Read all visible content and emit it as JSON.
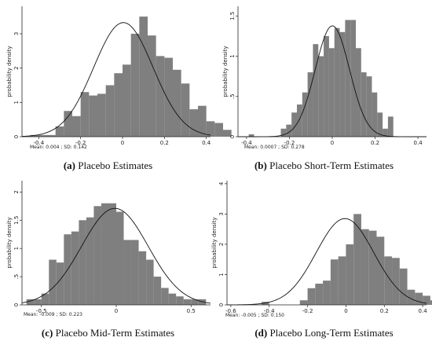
{
  "chart_data": [
    {
      "type": "histogram",
      "caption": {
        "label": "(a)",
        "text": "Placebo Estimates"
      },
      "ylabel": "probability density",
      "stats_text": "Mean: 0.004 ; SD: 0.142",
      "xlim": [
        -0.48,
        0.42
      ],
      "ylim": [
        0,
        3.8
      ],
      "xticks": [
        -0.4,
        -0.2,
        0,
        0.2,
        0.4
      ],
      "xtick_labels": [
        "-0.4",
        "-0.2",
        "0",
        "0.2",
        "0.4"
      ],
      "yticks": [
        0,
        1,
        2,
        3
      ],
      "ytick_labels": [
        "0",
        "1",
        "2",
        "3"
      ],
      "bin_start": -0.44,
      "bin_width": 0.04,
      "densities": [
        0.05,
        0.05,
        0.05,
        0.3,
        0.75,
        0.6,
        1.3,
        1.2,
        1.25,
        1.5,
        1.85,
        2.1,
        3.0,
        3.5,
        2.95,
        2.35,
        2.3,
        1.95,
        1.55,
        0.8,
        0.9,
        0.45,
        0.4,
        0.2
      ],
      "normal": {
        "mean": 0.004,
        "sd": 0.142
      },
      "grid": false
    },
    {
      "type": "histogram",
      "caption": {
        "label": "(b)",
        "text": "Placebo Short-Term Estimates"
      },
      "ylabel": "probability density",
      "stats_text": "Mean: 0.0007 ; SD: 0.278",
      "xlim": [
        -0.44,
        0.44
      ],
      "ylim": [
        0,
        1.62
      ],
      "xticks": [
        -0.4,
        -0.2,
        0,
        0.2,
        0.4
      ],
      "xtick_labels": [
        "-0.4",
        "-0.2",
        "0",
        "0.2",
        "0.4"
      ],
      "yticks": [
        0,
        0.5,
        1,
        1.5
      ],
      "ytick_labels": [
        "0",
        ".5",
        "1",
        "1.5"
      ],
      "bin_start": -0.39,
      "bin_width": 0.025,
      "densities": [
        0.03,
        0,
        0,
        0,
        0,
        0,
        0.1,
        0.15,
        0.3,
        0.4,
        0.55,
        0.8,
        1.15,
        1.0,
        1.25,
        1.1,
        1.35,
        1.3,
        1.45,
        1.45,
        1.1,
        0.8,
        0.75,
        0.55,
        0.3,
        0.1,
        0.25
      ],
      "normal": {
        "mean": 0.0007,
        "sd": 0.278
      },
      "curve_sd": 0.08,
      "grid": false
    },
    {
      "type": "histogram",
      "caption": {
        "label": "(c)",
        "text": "Placebo Mid-Term Estimates"
      },
      "ylabel": "probability density",
      "stats_text": "Mean: -0.009 ; SD: 0.223",
      "xlim": [
        -0.63,
        0.63
      ],
      "ylim": [
        0,
        2.2
      ],
      "xticks": [
        -0.5,
        0,
        0.5
      ],
      "xtick_labels": [
        "-0.5",
        "0",
        "0.5"
      ],
      "yticks": [
        0,
        0.5,
        1,
        1.5,
        2
      ],
      "ytick_labels": [
        "0",
        ".5",
        "1",
        "1.5",
        "2"
      ],
      "bin_start": -0.6,
      "bin_width": 0.05,
      "densities": [
        0.1,
        0.1,
        0.2,
        0.8,
        0.75,
        1.25,
        1.3,
        1.5,
        1.55,
        1.75,
        1.8,
        1.8,
        1.65,
        1.15,
        1.15,
        0.95,
        0.8,
        0.5,
        0.3,
        0.2,
        0.15,
        0.1,
        0.1,
        0.1
      ],
      "normal": {
        "mean": -0.009,
        "sd": 0.223
      },
      "grid": false
    },
    {
      "type": "histogram",
      "caption": {
        "label": "(d)",
        "text": "Placebo Long-Term Estimates"
      },
      "ylabel": "probability density",
      "stats_text": "Mean: -0.005 ; SD: 0.150",
      "xlim": [
        -0.62,
        0.42
      ],
      "ylim": [
        0,
        4.1
      ],
      "xticks": [
        -0.6,
        -0.4,
        -0.2,
        0,
        0.2,
        0.4
      ],
      "xtick_labels": [
        "-0.6",
        "-0.4",
        "-0.2",
        "0",
        "0.2",
        "0.4"
      ],
      "yticks": [
        0,
        1,
        2,
        3,
        4
      ],
      "ytick_labels": [
        "0",
        "1",
        "2",
        "3",
        "4"
      ],
      "bin_start": -0.44,
      "bin_width": 0.04,
      "densities": [
        0.1,
        0,
        0,
        0,
        0,
        0.15,
        0.55,
        0.7,
        0.8,
        1.5,
        1.6,
        2.0,
        3.0,
        2.5,
        2.45,
        2.25,
        1.6,
        1.55,
        1.2,
        0.5,
        0.4,
        0.3,
        0.15
      ],
      "normal": {
        "mean": -0.005,
        "sd": 0.15
      },
      "grid": false
    }
  ]
}
